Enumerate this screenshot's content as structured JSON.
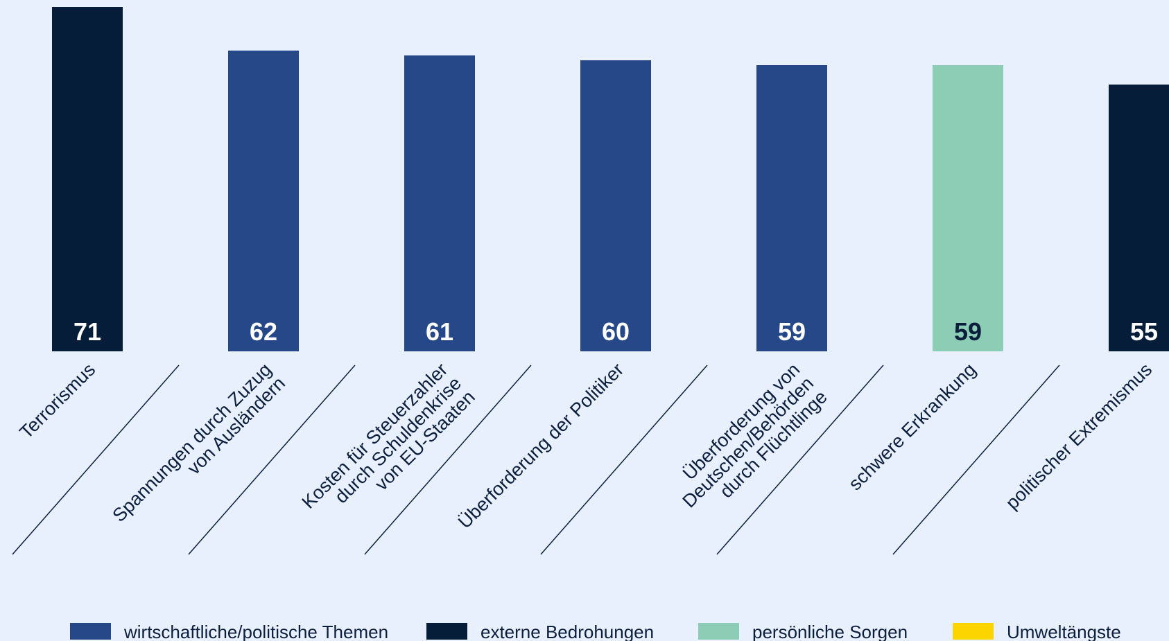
{
  "chart_data": {
    "type": "bar",
    "categories": [
      [
        "Terrorismus"
      ],
      [
        "Spannungen durch Zuzug",
        "von Ausländern"
      ],
      [
        "Kosten für Steuerzahler",
        "durch Schuldenkrise",
        "von EU-Staaten"
      ],
      [
        "Überforderung der Politiker"
      ],
      [
        "Überforderung von",
        "Deutschen/Behörden",
        "durch Flüchtlinge"
      ],
      [
        "schwere Erkrankung"
      ],
      [
        "politischer Extremismus"
      ]
    ],
    "values": [
      71,
      62,
      61,
      60,
      59,
      59,
      55
    ],
    "groups": [
      "externe Bedrohungen",
      "wirtschaftliche/politische Themen",
      "wirtschaftliche/politische Themen",
      "wirtschaftliche/politische Themen",
      "wirtschaftliche/politische Themen",
      "persönliche Sorgen",
      "externe Bedrohungen"
    ],
    "legend": [
      {
        "name": "wirtschaftliche/politische Themen",
        "color": "#264889"
      },
      {
        "name": "externe Bedrohungen",
        "color": "#061d3a"
      },
      {
        "name": "persönliche Sorgen",
        "color": "#8dcdb5"
      },
      {
        "name": "Umweltängste",
        "color": "#fcd500"
      }
    ],
    "legend_position": "bottom",
    "grid": false,
    "title": "",
    "xlabel": "",
    "ylabel": ""
  }
}
